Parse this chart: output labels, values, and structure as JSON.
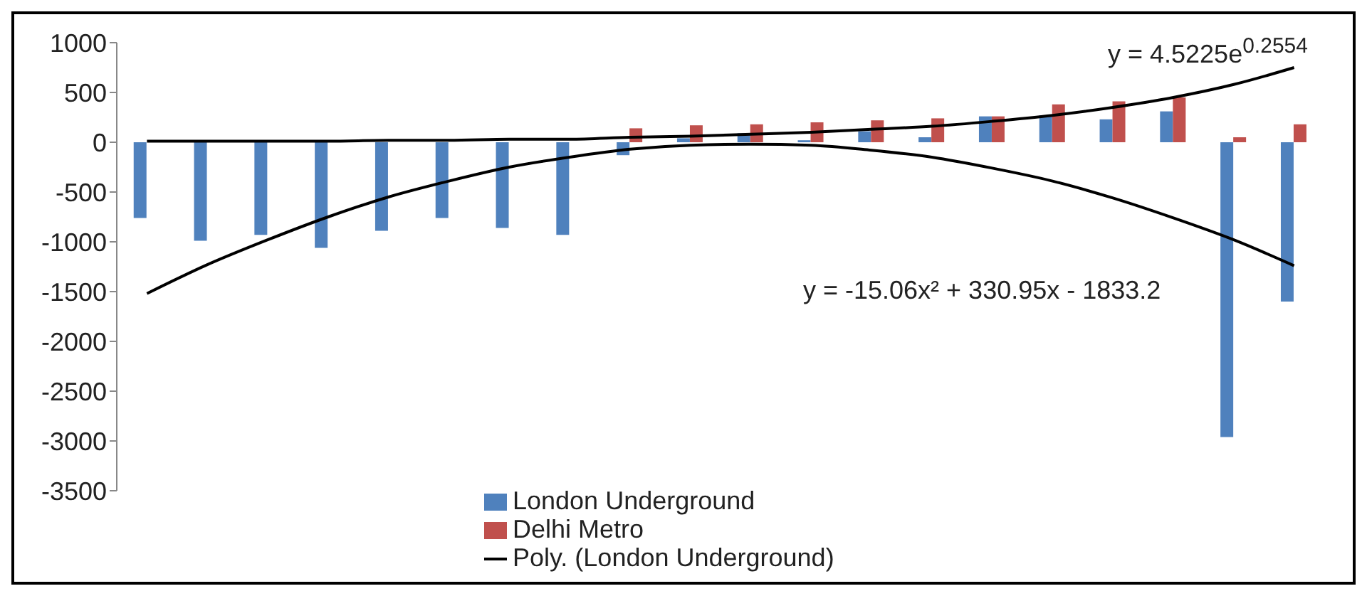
{
  "chart_data": {
    "type": "bar",
    "categories": [
      null,
      null,
      null,
      null,
      null,
      null,
      null,
      null,
      null,
      null,
      null,
      null,
      null,
      null,
      null,
      null,
      null,
      null,
      null,
      null
    ],
    "series": [
      {
        "name": "London Underground",
        "color": "#4f81bd",
        "values": [
          -760,
          -990,
          -930,
          -1060,
          -890,
          -760,
          -860,
          -930,
          -130,
          40,
          90,
          20,
          110,
          50,
          260,
          270,
          230,
          310,
          -2960,
          -1600
        ]
      },
      {
        "name": "Delhi Metro",
        "color": "#c0504d",
        "values": [
          0,
          10,
          10,
          10,
          null,
          null,
          null,
          null,
          140,
          170,
          180,
          200,
          220,
          240,
          260,
          380,
          410,
          450,
          50,
          180
        ]
      },
      {
        "name": "Poly. (London Underground)",
        "type": "line",
        "color": "#000000",
        "values": [
          -1520,
          -1230,
          -980,
          -750,
          -550,
          -390,
          -250,
          -150,
          -70,
          -30,
          -20,
          -30,
          -80,
          -150,
          -260,
          -390,
          -560,
          -760,
          -980,
          -1240
        ]
      },
      {
        "type": "line",
        "color": "#000000",
        "values": [
          10,
          10,
          10,
          10,
          20,
          20,
          30,
          30,
          50,
          60,
          80,
          100,
          130,
          160,
          210,
          270,
          350,
          450,
          580,
          750
        ]
      }
    ],
    "ylim": [
      -3500,
      1000
    ],
    "yticks": [
      -3500,
      -3000,
      -2500,
      -2000,
      -1500,
      -1000,
      -500,
      0,
      500,
      1000
    ],
    "annotations": [
      "y = 4.5225e$^{0.2554}$",
      "y = -15.06x² + 330.95x - 1833.2"
    ],
    "legend": "bottom",
    "grid": false,
    "tick_labels": "y",
    "marker": "none",
    "line_style": "solid"
  }
}
